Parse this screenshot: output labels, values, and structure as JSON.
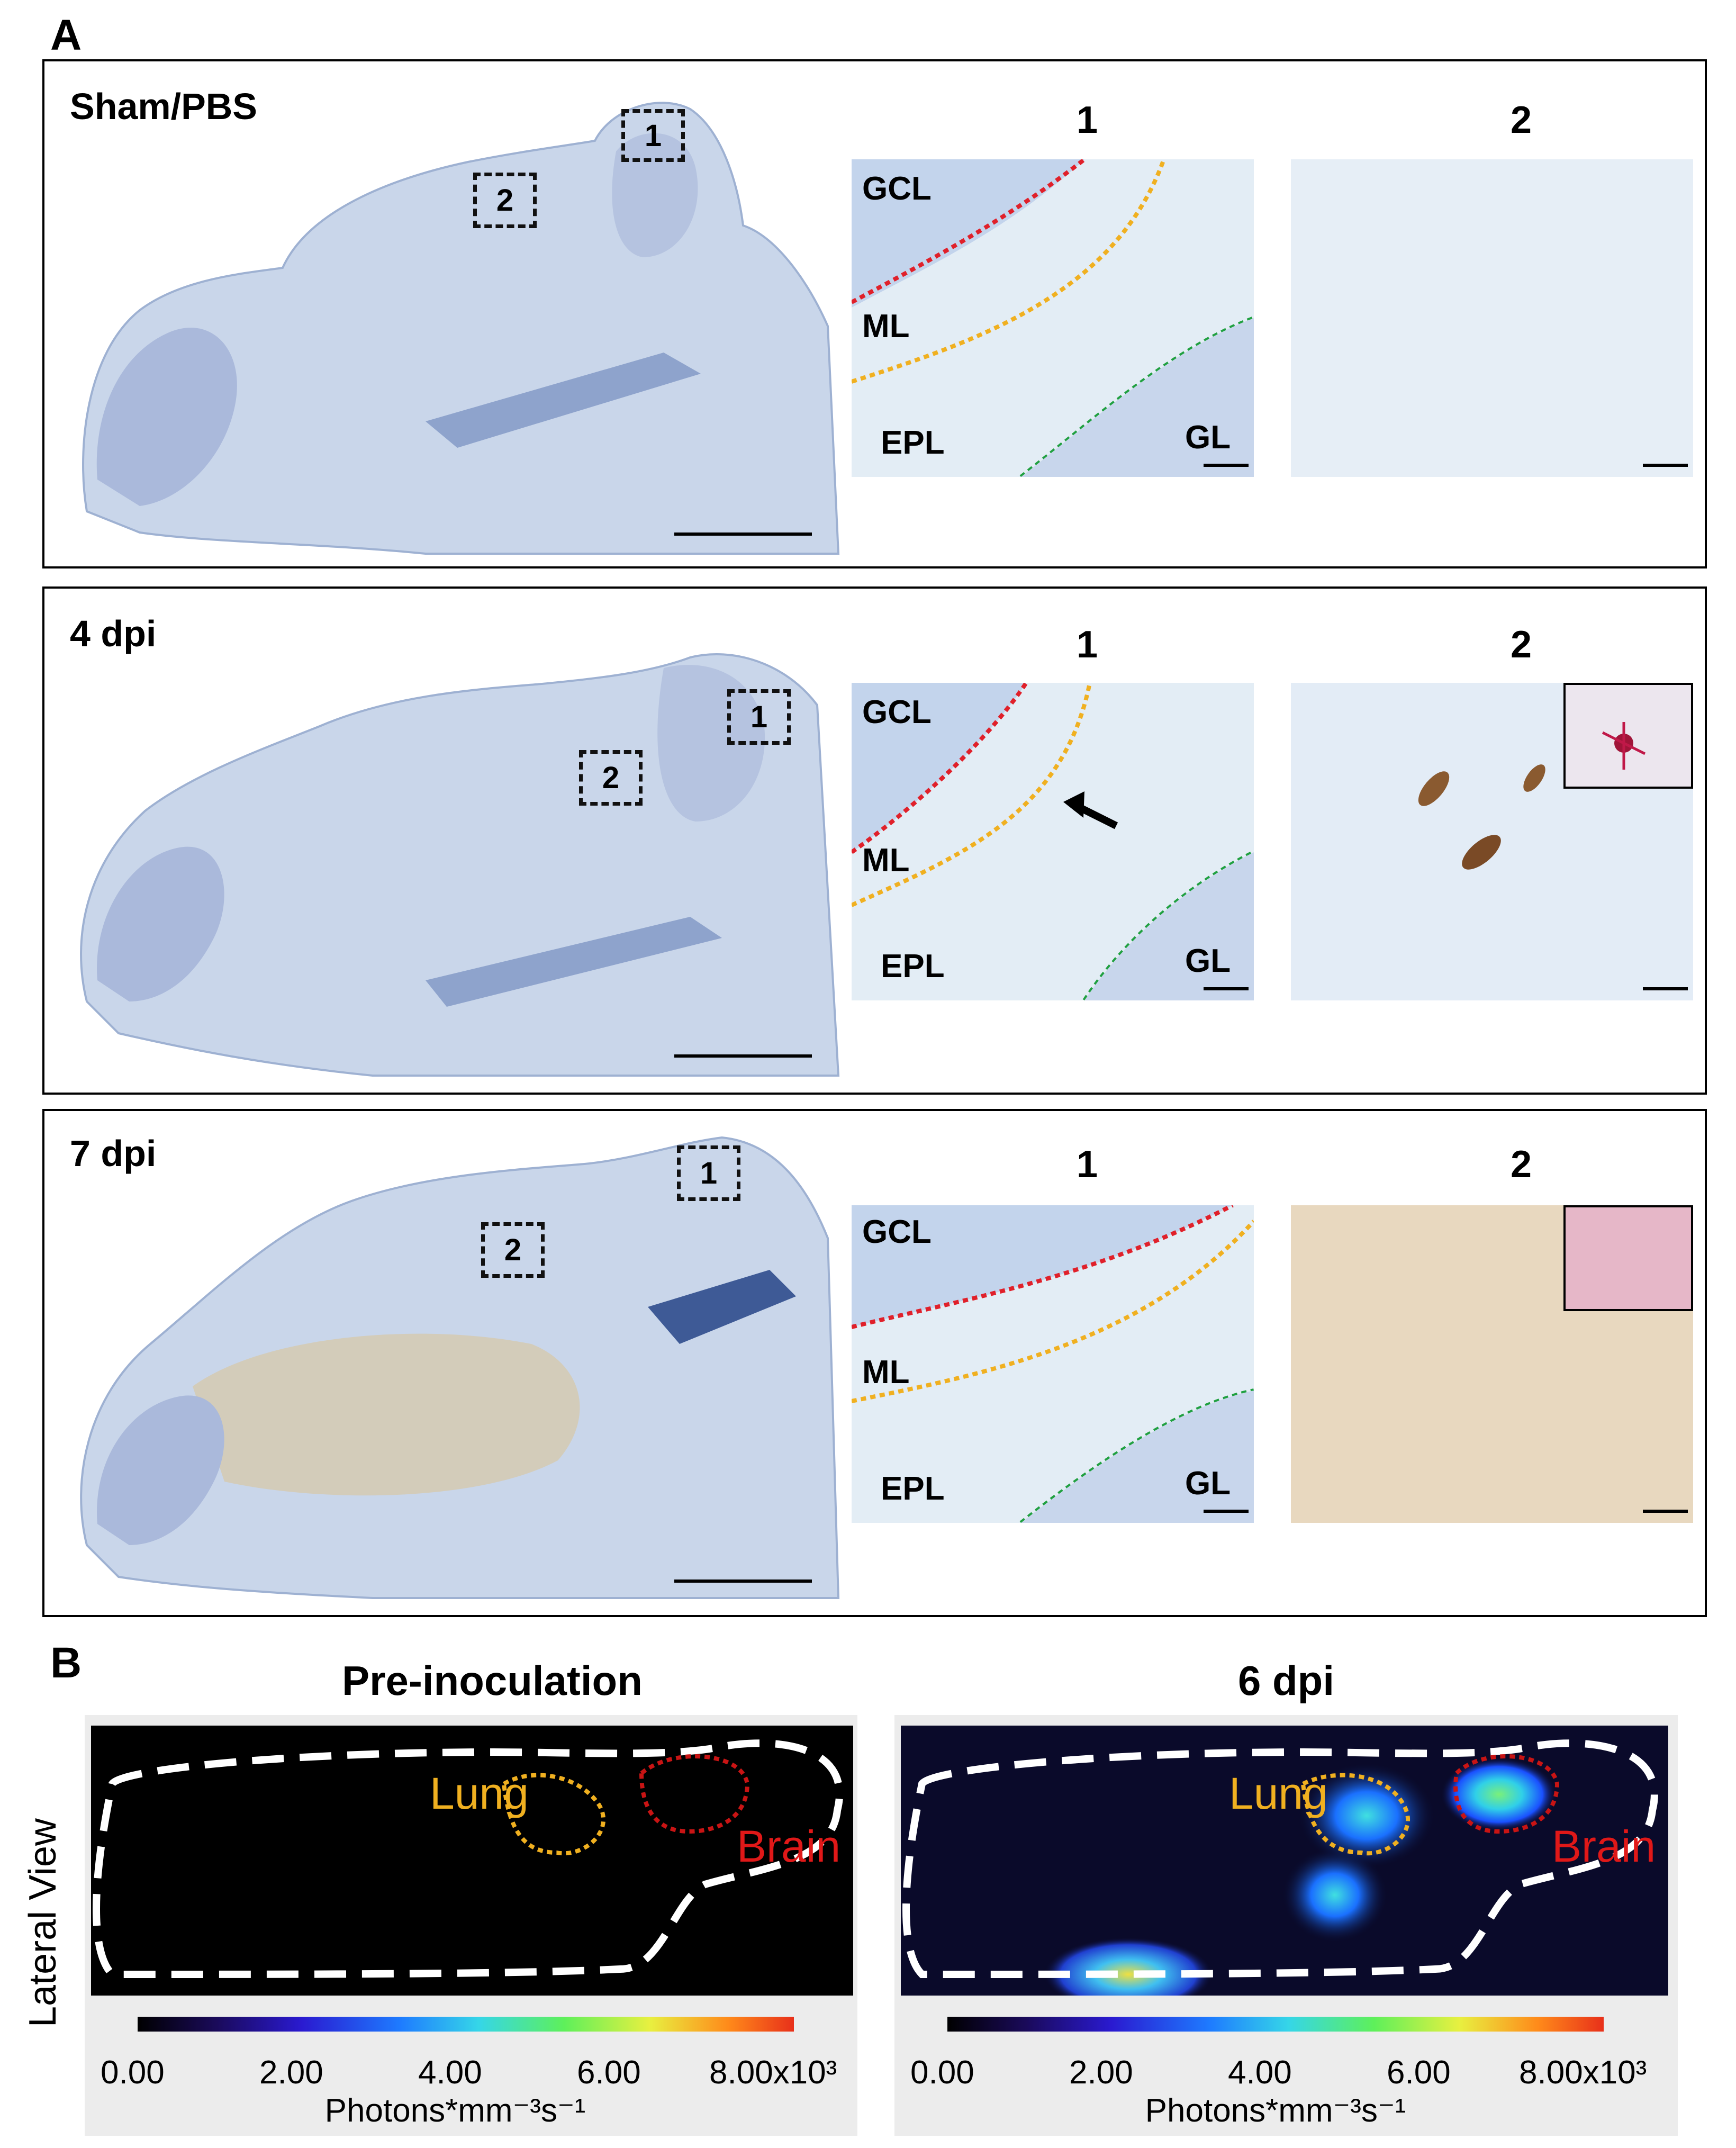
{
  "panel_a": {
    "letter": "A",
    "rows": [
      {
        "label": "Sham/PBS",
        "zone1": "1",
        "zone2": "2",
        "micro1_num": "1",
        "micro2_num": "2",
        "layers": {
          "gcl": "GCL",
          "ml": "ML",
          "epl": "EPL",
          "gl": "GL"
        }
      },
      {
        "label": "4 dpi",
        "zone1": "1",
        "zone2": "2",
        "micro1_num": "1",
        "micro2_num": "2",
        "layers": {
          "gcl": "GCL",
          "ml": "ML",
          "epl": "EPL",
          "gl": "GL"
        }
      },
      {
        "label": "7 dpi",
        "zone1": "1",
        "zone2": "2",
        "micro1_num": "1",
        "micro2_num": "2",
        "layers": {
          "gcl": "GCL",
          "ml": "ML",
          "epl": "EPL",
          "gl": "GL"
        }
      }
    ]
  },
  "panel_b": {
    "letter": "B",
    "side_label": "Lateral View",
    "images": [
      {
        "title": "Pre-inoculation",
        "lung": "Lung",
        "brain": "Brain",
        "ticks": [
          "0.00",
          "2.00",
          "4.00",
          "6.00",
          "8.00x10³"
        ],
        "unit": "Photons*mm⁻³s⁻¹"
      },
      {
        "title": "6 dpi",
        "lung": "Lung",
        "brain": "Brain",
        "ticks": [
          "0.00",
          "2.00",
          "4.00",
          "6.00",
          "8.00x10³"
        ],
        "unit": "Photons*mm⁻³s⁻¹"
      }
    ]
  },
  "colors": {
    "gcl_border": "#e0202a",
    "ml_border": "#f0b020",
    "gl_border": "#20a040",
    "lung_outline": "#f0b020",
    "brain_outline": "#c81414",
    "brain_text": "#e01818",
    "lung_text": "#f0b020"
  }
}
